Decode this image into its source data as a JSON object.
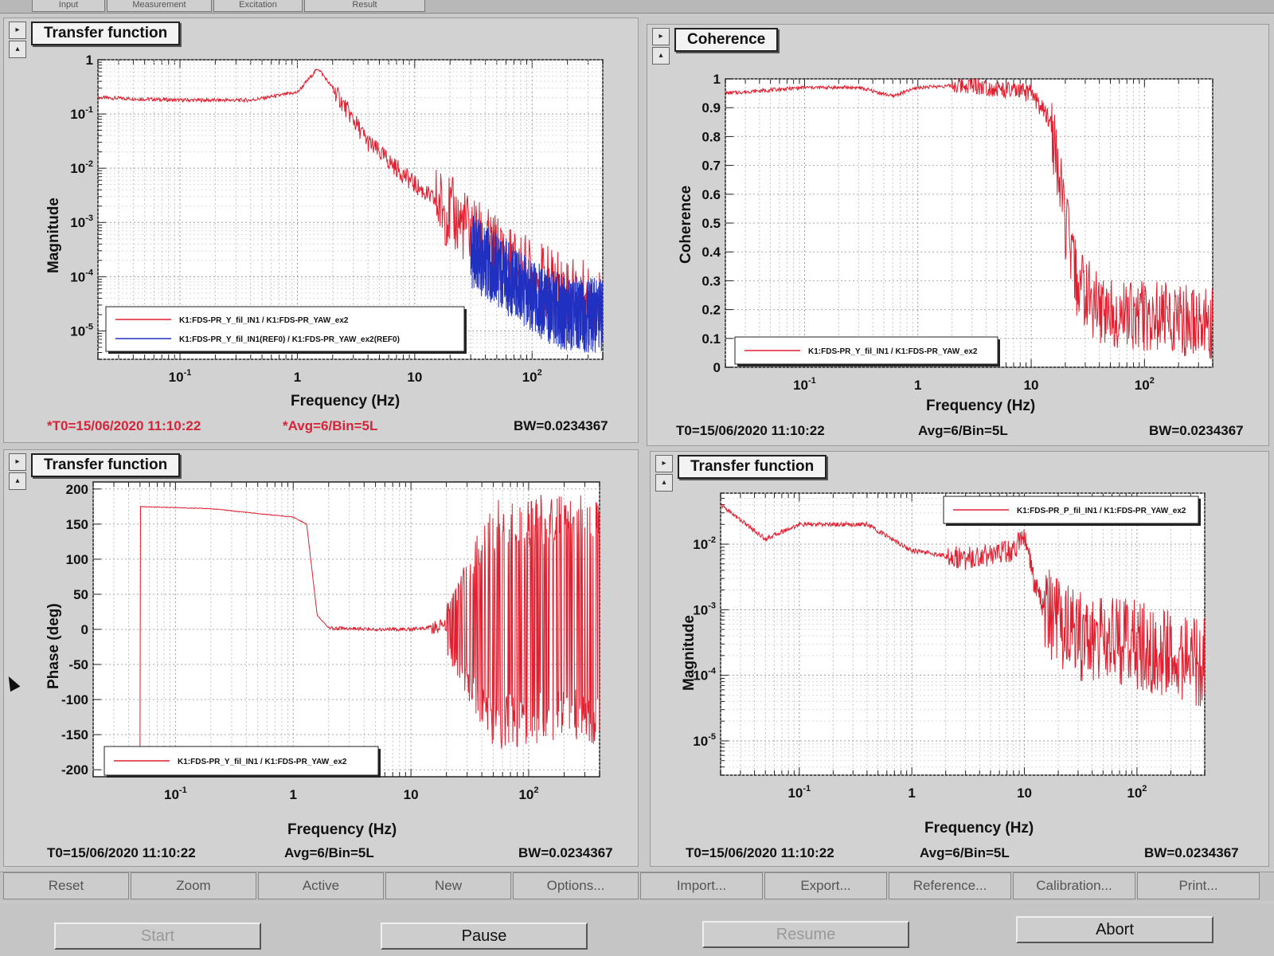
{
  "tabs": [
    "Input",
    "Measurement",
    "Excitation",
    "Result"
  ],
  "toolbar": [
    "Reset",
    "Zoom",
    "Active",
    "New",
    "Options...",
    "Import...",
    "Export...",
    "Reference...",
    "Calibration...",
    "Print..."
  ],
  "bottom_buttons": [
    {
      "label": "Start",
      "enabled": false
    },
    {
      "label": "Pause",
      "enabled": true
    },
    {
      "label": "Resume",
      "enabled": false
    },
    {
      "label": "Abort",
      "enabled": true
    }
  ],
  "colors": {
    "trace": "#e02030",
    "reference": "#2030c0",
    "modified_status": "#d6243a"
  },
  "panels": [
    {
      "title": "Transfer function",
      "ylabel": "Magnitude",
      "xlabel": "Frequency (Hz)",
      "status": {
        "t0": "*T0=15/06/2020 11:10:22",
        "avg": "*Avg=6/Bin=5L",
        "bw": "BW=0.0234367",
        "modified": true
      },
      "controls": [
        "right-arrow",
        "up-arrow"
      ],
      "chart_data": {
        "type": "line",
        "x_scale": "log",
        "y_scale": "log",
        "xlim": [
          0.02,
          400
        ],
        "ylim": [
          3e-06,
          1
        ],
        "x_ticks": [
          {
            "value": 0.1,
            "label": "10^-1"
          },
          {
            "value": 1,
            "label": "1"
          },
          {
            "value": 10,
            "label": "10"
          },
          {
            "value": 100,
            "label": "10^2"
          }
        ],
        "y_ticks": [
          {
            "value": 1,
            "label": "1"
          },
          {
            "value": 0.1,
            "label": "10^-1"
          },
          {
            "value": 0.01,
            "label": "10^-2"
          },
          {
            "value": 0.001,
            "label": "10^-3"
          },
          {
            "value": 0.0001,
            "label": "10^-4"
          },
          {
            "value": 1e-05,
            "label": "10^-5"
          }
        ],
        "legend": [
          "K1:FDS-PR_Y_fil_IN1 / K1:FDS-PR_YAW_ex2",
          "K1:FDS-PR_Y_fil_IN1(REF0) / K1:FDS-PR_YAW_ex2(REF0)"
        ],
        "legend_position": "bottom-left",
        "grid": true,
        "series": [
          {
            "name": "K1:FDS-PR_Y_fil_IN1 / K1:FDS-PR_YAW_ex2",
            "color": "red",
            "points": [
              [
                0.02,
                0.2
              ],
              [
                0.1,
                0.18
              ],
              [
                0.4,
                0.18
              ],
              [
                1,
                0.25
              ],
              [
                1.5,
                0.7
              ],
              [
                2,
                0.3
              ],
              [
                4,
                0.03
              ],
              [
                10,
                0.005
              ],
              [
                20,
                0.0015
              ],
              [
                40,
                0.0004
              ],
              [
                100,
                0.0001
              ],
              [
                400,
                3e-05
              ]
            ]
          },
          {
            "name": "K1:FDS-PR_Y_fil_IN1(REF0) / K1:FDS-PR_YAW_ex2(REF0)",
            "color": "blue",
            "points": [
              [
                30,
                0.0003
              ],
              [
                60,
                0.0001
              ],
              [
                100,
                4e-05
              ],
              [
                200,
                2e-05
              ],
              [
                400,
                2e-05
              ]
            ]
          }
        ]
      }
    },
    {
      "title": "Coherence",
      "ylabel": "Coherence",
      "xlabel": "Frequency (Hz)",
      "status": {
        "t0": "T0=15/06/2020 11:10:22",
        "avg": "Avg=6/Bin=5L",
        "bw": "BW=0.0234367",
        "modified": false
      },
      "controls": [
        "right-arrow",
        "up-arrow"
      ],
      "chart_data": {
        "type": "line",
        "x_scale": "log",
        "y_scale": "linear",
        "xlim": [
          0.02,
          400
        ],
        "ylim": [
          0,
          1
        ],
        "x_ticks": [
          {
            "value": 0.1,
            "label": "10^-1"
          },
          {
            "value": 1,
            "label": "1"
          },
          {
            "value": 10,
            "label": "10"
          },
          {
            "value": 100,
            "label": "10^2"
          }
        ],
        "y_ticks": [
          {
            "value": 0,
            "label": "0"
          },
          {
            "value": 0.1,
            "label": "0.1"
          },
          {
            "value": 0.2,
            "label": "0.2"
          },
          {
            "value": 0.3,
            "label": "0.3"
          },
          {
            "value": 0.4,
            "label": "0.4"
          },
          {
            "value": 0.5,
            "label": "0.5"
          },
          {
            "value": 0.6,
            "label": "0.6"
          },
          {
            "value": 0.7,
            "label": "0.7"
          },
          {
            "value": 0.8,
            "label": "0.8"
          },
          {
            "value": 0.9,
            "label": "0.9"
          },
          {
            "value": 1,
            "label": "1"
          }
        ],
        "legend": [
          "K1:FDS-PR_Y_fil_IN1 / K1:FDS-PR_YAW_ex2"
        ],
        "legend_position": "bottom-left",
        "grid": true,
        "series": [
          {
            "name": "K1:FDS-PR_Y_fil_IN1 / K1:FDS-PR_YAW_ex2",
            "color": "red",
            "points": [
              [
                0.02,
                0.95
              ],
              [
                0.1,
                0.97
              ],
              [
                0.3,
                0.97
              ],
              [
                0.6,
                0.94
              ],
              [
                1,
                0.97
              ],
              [
                3,
                0.98
              ],
              [
                6,
                0.96
              ],
              [
                10,
                0.95
              ],
              [
                15,
                0.85
              ],
              [
                20,
                0.5
              ],
              [
                25,
                0.3
              ],
              [
                40,
                0.2
              ],
              [
                100,
                0.18
              ],
              [
                400,
                0.15
              ]
            ]
          }
        ]
      }
    },
    {
      "title": "Transfer function",
      "ylabel": "Phase (deg)",
      "xlabel": "Frequency (Hz)",
      "status": {
        "t0": "T0=15/06/2020 11:10:22",
        "avg": "Avg=6/Bin=5L",
        "bw": "BW=0.0234367",
        "modified": false
      },
      "controls": [
        "right-arrow",
        "up-arrow"
      ],
      "chart_data": {
        "type": "line",
        "x_scale": "log",
        "y_scale": "linear",
        "xlim": [
          0.02,
          400
        ],
        "ylim": [
          -210,
          210
        ],
        "x_ticks": [
          {
            "value": 0.1,
            "label": "10^-1"
          },
          {
            "value": 1,
            "label": "1"
          },
          {
            "value": 10,
            "label": "10"
          },
          {
            "value": 100,
            "label": "10^2"
          }
        ],
        "y_ticks": [
          {
            "value": 200,
            "label": "200"
          },
          {
            "value": 150,
            "label": "150"
          },
          {
            "value": 100,
            "label": "100"
          },
          {
            "value": 50,
            "label": "50"
          },
          {
            "value": 0,
            "label": "0"
          },
          {
            "value": -50,
            "label": "-50"
          },
          {
            "value": -100,
            "label": "-100"
          },
          {
            "value": -150,
            "label": "-150"
          },
          {
            "value": -200,
            "label": "-200"
          }
        ],
        "legend": [
          "K1:FDS-PR_Y_fil_IN1 / K1:FDS-PR_YAW_ex2"
        ],
        "legend_position": "bottom-left",
        "grid": true,
        "series": [
          {
            "name": "K1:FDS-PR_Y_fil_IN1 / K1:FDS-PR_YAW_ex2",
            "color": "red",
            "points": [
              [
                0.05,
                -180
              ],
              [
                0.05,
                175
              ],
              [
                0.2,
                172
              ],
              [
                0.5,
                165
              ],
              [
                1,
                160
              ],
              [
                1.3,
                150
              ],
              [
                1.6,
                20
              ],
              [
                2,
                2
              ],
              [
                5,
                0
              ],
              [
                10,
                0
              ],
              [
                20,
                5
              ],
              [
                30,
                20
              ],
              [
                50,
                60
              ],
              [
                100,
                140
              ],
              [
                400,
                160
              ]
            ]
          }
        ]
      }
    },
    {
      "title": "Transfer function",
      "ylabel": "Magnitude",
      "xlabel": "Frequency (Hz)",
      "status": {
        "t0": "T0=15/06/2020 11:10:22",
        "avg": "Avg=6/Bin=5L",
        "bw": "BW=0.0234367",
        "modified": false
      },
      "controls": [
        "right-arrow",
        "up-arrow"
      ],
      "chart_data": {
        "type": "line",
        "x_scale": "log",
        "y_scale": "log",
        "xlim": [
          0.02,
          400
        ],
        "ylim": [
          3e-06,
          0.06
        ],
        "x_ticks": [
          {
            "value": 0.1,
            "label": "10^-1"
          },
          {
            "value": 1,
            "label": "1"
          },
          {
            "value": 10,
            "label": "10"
          },
          {
            "value": 100,
            "label": "10^2"
          }
        ],
        "y_ticks": [
          {
            "value": 0.01,
            "label": "10^-2"
          },
          {
            "value": 0.001,
            "label": "10^-3"
          },
          {
            "value": 0.0001,
            "label": "10^-4"
          },
          {
            "value": 1e-05,
            "label": "10^-5"
          }
        ],
        "legend": [
          "K1:FDS-PR_P_fil_IN1 / K1:FDS-PR_YAW_ex2"
        ],
        "legend_position": "top-right",
        "grid": true,
        "series": [
          {
            "name": "K1:FDS-PR_P_fil_IN1 / K1:FDS-PR_YAW_ex2",
            "color": "red",
            "points": [
              [
                0.02,
                0.04
              ],
              [
                0.05,
                0.012
              ],
              [
                0.1,
                0.02
              ],
              [
                0.2,
                0.02
              ],
              [
                0.4,
                0.02
              ],
              [
                1,
                0.008
              ],
              [
                3,
                0.006
              ],
              [
                8,
                0.008
              ],
              [
                10,
                0.015
              ],
              [
                12,
                0.003
              ],
              [
                15,
                0.001
              ],
              [
                30,
                0.0004
              ],
              [
                100,
                0.0003
              ],
              [
                400,
                0.00015
              ]
            ]
          }
        ]
      }
    }
  ]
}
